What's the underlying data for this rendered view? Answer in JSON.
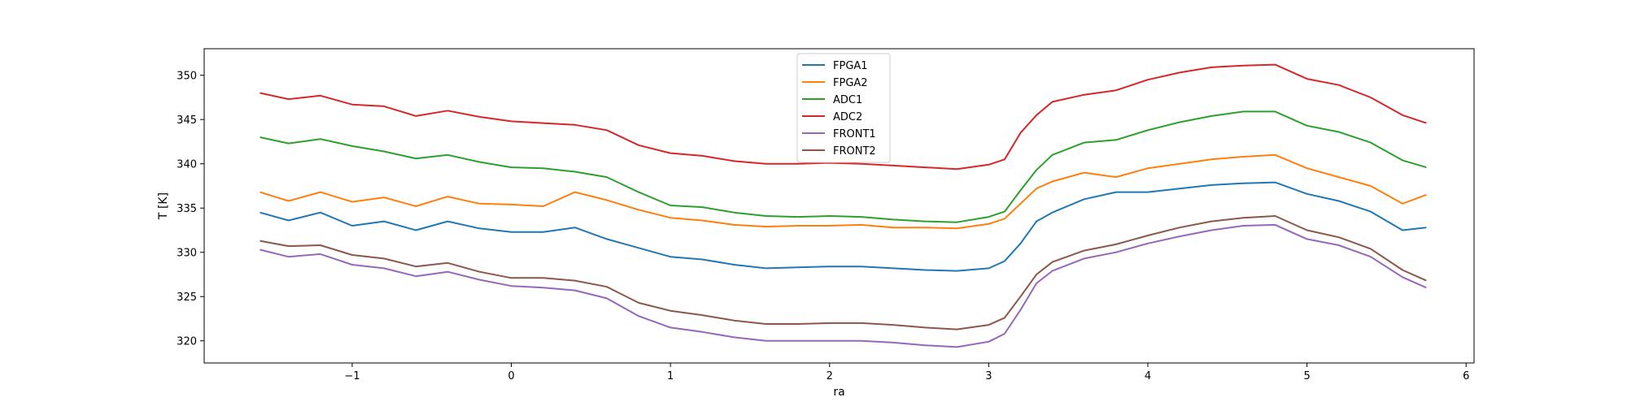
{
  "chart_data": {
    "type": "line",
    "title": "",
    "xlabel": "ra",
    "ylabel": "T [K]",
    "xlim": [
      -1.93,
      6.05
    ],
    "ylim": [
      317.5,
      353.0
    ],
    "xticks": [
      -1,
      0,
      1,
      2,
      3,
      4,
      5,
      6
    ],
    "xtick_labels": [
      "−1",
      "0",
      "1",
      "2",
      "3",
      "4",
      "5",
      "6"
    ],
    "yticks": [
      320,
      325,
      330,
      335,
      340,
      345,
      350
    ],
    "ytick_labels": [
      "320",
      "325",
      "330",
      "335",
      "340",
      "345",
      "350"
    ],
    "grid": false,
    "legend_position": "upper center",
    "x": [
      -1.58,
      -1.4,
      -1.2,
      -1.0,
      -0.8,
      -0.6,
      -0.4,
      -0.2,
      0.0,
      0.2,
      0.4,
      0.6,
      0.8,
      1.0,
      1.2,
      1.4,
      1.6,
      1.8,
      2.0,
      2.2,
      2.4,
      2.6,
      2.8,
      3.0,
      3.1,
      3.2,
      3.3,
      3.4,
      3.6,
      3.8,
      4.0,
      4.2,
      4.4,
      4.6,
      4.8,
      5.0,
      5.2,
      5.4,
      5.6,
      5.75
    ],
    "series": [
      {
        "name": "FPGA1",
        "color": "#1f77b4",
        "values": [
          334.5,
          333.6,
          334.5,
          333.0,
          333.5,
          332.5,
          333.5,
          332.7,
          332.3,
          332.3,
          332.8,
          331.5,
          330.5,
          329.5,
          329.2,
          328.6,
          328.2,
          328.3,
          328.4,
          328.4,
          328.2,
          328.0,
          327.9,
          328.2,
          329.0,
          331.0,
          333.5,
          334.5,
          336.0,
          336.8,
          336.8,
          337.2,
          337.6,
          337.8,
          337.9,
          336.6,
          335.8,
          334.6,
          332.5,
          332.8
        ]
      },
      {
        "name": "FPGA2",
        "color": "#ff7f0e",
        "values": [
          336.8,
          335.8,
          336.8,
          335.7,
          336.2,
          335.2,
          336.3,
          335.5,
          335.4,
          335.2,
          336.8,
          335.9,
          334.8,
          333.9,
          333.6,
          333.1,
          332.9,
          333.0,
          333.0,
          333.1,
          332.8,
          332.8,
          332.7,
          333.2,
          333.8,
          335.5,
          337.2,
          338.0,
          339.0,
          338.5,
          339.5,
          340.0,
          340.5,
          340.8,
          341.0,
          339.5,
          338.5,
          337.5,
          335.5,
          336.5
        ]
      },
      {
        "name": "ADC1",
        "color": "#2ca02c",
        "values": [
          343.0,
          342.3,
          342.8,
          342.0,
          341.4,
          340.6,
          341.0,
          340.2,
          339.6,
          339.5,
          339.1,
          338.5,
          336.8,
          335.3,
          335.1,
          334.5,
          334.1,
          334.0,
          334.1,
          334.0,
          333.7,
          333.5,
          333.4,
          334.0,
          334.6,
          337.0,
          339.3,
          341.0,
          342.4,
          342.7,
          343.8,
          344.7,
          345.4,
          345.9,
          345.9,
          344.3,
          343.6,
          342.4,
          340.4,
          339.6
        ]
      },
      {
        "name": "ADC2",
        "color": "#d62728",
        "values": [
          348.0,
          347.3,
          347.7,
          346.7,
          346.5,
          345.4,
          346.0,
          345.3,
          344.8,
          344.6,
          344.4,
          343.8,
          342.1,
          341.2,
          340.9,
          340.3,
          340.0,
          340.0,
          340.1,
          340.0,
          339.8,
          339.6,
          339.4,
          339.9,
          340.5,
          343.5,
          345.5,
          347.0,
          347.8,
          348.3,
          349.5,
          350.3,
          350.9,
          351.1,
          351.2,
          349.6,
          348.9,
          347.5,
          345.5,
          344.6
        ]
      },
      {
        "name": "FRONT1",
        "color": "#9467bd",
        "values": [
          330.3,
          329.5,
          329.8,
          328.6,
          328.2,
          327.3,
          327.8,
          326.9,
          326.2,
          326.0,
          325.7,
          324.8,
          322.8,
          321.5,
          321.0,
          320.4,
          320.0,
          320.0,
          320.0,
          320.0,
          319.8,
          319.5,
          319.3,
          319.9,
          320.8,
          323.5,
          326.5,
          327.9,
          329.3,
          330.0,
          331.0,
          331.8,
          332.5,
          333.0,
          333.1,
          331.5,
          330.8,
          329.5,
          327.2,
          326.0
        ]
      },
      {
        "name": "FRONT2",
        "color": "#8c564b",
        "values": [
          331.3,
          330.7,
          330.8,
          329.7,
          329.3,
          328.4,
          328.8,
          327.8,
          327.1,
          327.1,
          326.8,
          326.1,
          324.3,
          323.4,
          322.9,
          322.3,
          321.9,
          321.9,
          322.0,
          322.0,
          321.8,
          321.5,
          321.3,
          321.8,
          322.6,
          325.0,
          327.5,
          328.9,
          330.2,
          330.9,
          331.9,
          332.8,
          333.5,
          333.9,
          334.1,
          332.5,
          331.7,
          330.4,
          328.0,
          326.8
        ]
      }
    ]
  }
}
